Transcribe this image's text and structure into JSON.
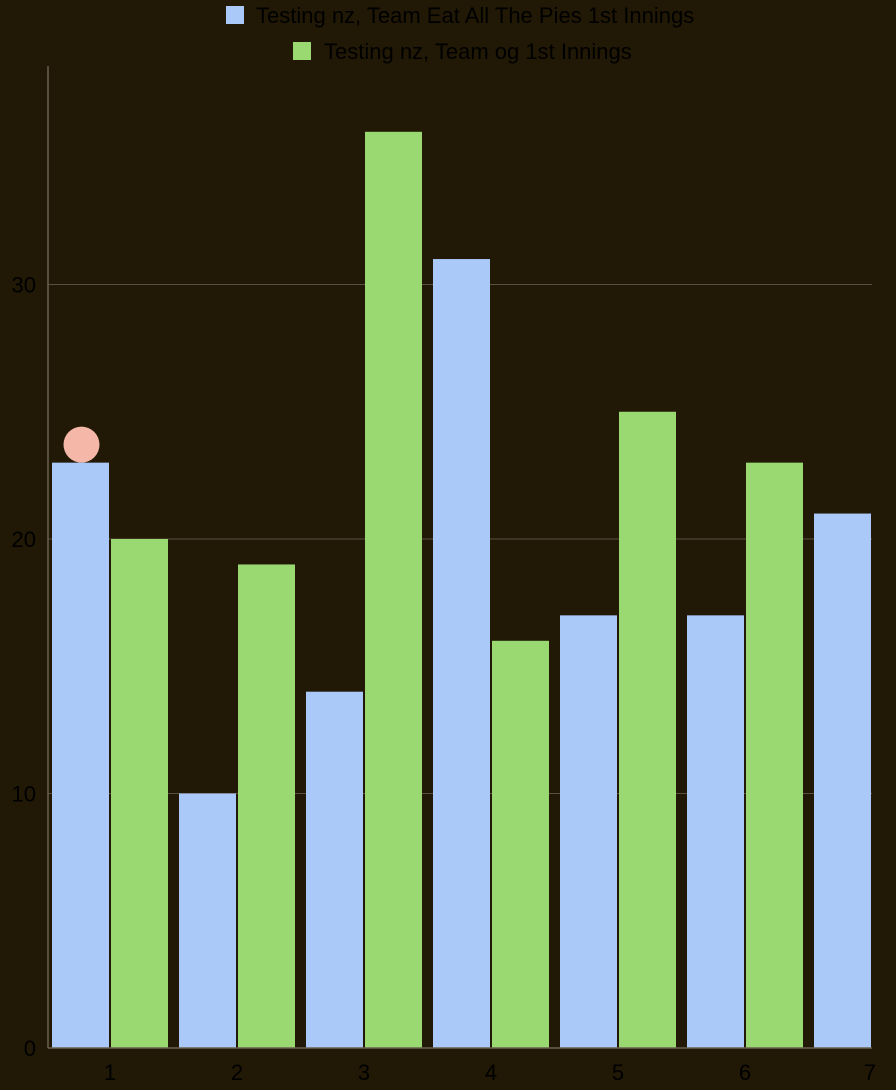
{
  "chart_data": {
    "type": "bar",
    "title": "",
    "xlabel": "",
    "ylabel": "",
    "x": [
      1,
      2,
      3,
      4,
      5,
      6,
      7
    ],
    "x_tick_labels": [
      "1",
      "2",
      "3",
      "4",
      "5",
      "6",
      "7"
    ],
    "y_tick_labels": [
      "0",
      "10",
      "20",
      "30"
    ],
    "ylim": [
      0,
      36
    ],
    "grid": true,
    "legend_position": "top",
    "series": [
      {
        "name": "Testing nz, Team Eat All The Pies 1st Innings",
        "color": "#aac8f8",
        "values": [
          23,
          10,
          14,
          31,
          17,
          17,
          21
        ]
      },
      {
        "name": "Testing nz, Team og 1st Innings",
        "color": "#9ad872",
        "values": [
          20,
          19,
          36,
          16,
          25,
          23,
          null
        ]
      }
    ],
    "marker": {
      "x": 1,
      "color": "#f5b8a8"
    }
  },
  "colors": {
    "background": "#211906",
    "gridline": "#5a5040",
    "axis": "#6a6050",
    "text": "#000000"
  }
}
